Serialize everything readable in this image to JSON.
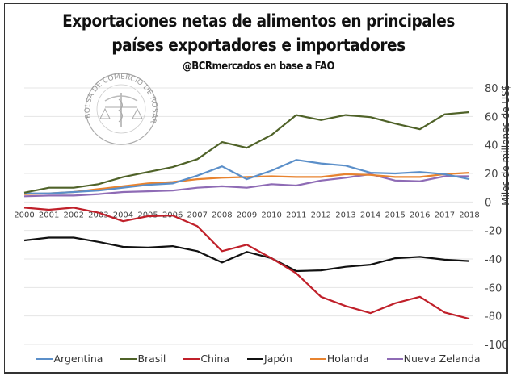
{
  "chart_data": {
    "type": "line",
    "title": "Exportaciones netas de alimentos en principales",
    "title_line2": "países exportadores e importadores",
    "subtitle": "@BCRmercados en base a FAO",
    "xlabel": "",
    "ylabel": "Miles de millones de US$",
    "ylim": [
      -100,
      80
    ],
    "yticks": [
      80,
      60,
      40,
      20,
      0,
      -20,
      -40,
      -60,
      -80,
      -100
    ],
    "grid": true,
    "legend_position": "bottom",
    "watermark": "BOLSA DE COMERCIO DE ROSARIO",
    "x": [
      "2000",
      "2001",
      "2002",
      "2003",
      "2004",
      "2005",
      "2006",
      "2007",
      "2008",
      "2009",
      "2010",
      "2011",
      "2012",
      "2013",
      "2014",
      "2015",
      "2016",
      "2017",
      "2018"
    ],
    "series": [
      {
        "name": "Argentina",
        "color": "#5b8fc9",
        "values": [
          6,
          6,
          7,
          8,
          10,
          12,
          13,
          18.5,
          25,
          16,
          22,
          29.5,
          27,
          25.5,
          20.5,
          20,
          21,
          19.5,
          16
        ]
      },
      {
        "name": "Brasil",
        "color": "#4f6228",
        "values": [
          6.5,
          10,
          10,
          12.5,
          17.5,
          21,
          24.5,
          30,
          42,
          38,
          47,
          61,
          57.5,
          61,
          59.5,
          55,
          51,
          61.5,
          63
        ]
      },
      {
        "name": "China",
        "color": "#c0202a",
        "values": [
          -4,
          -5.5,
          -4,
          -7.5,
          -13.5,
          -10,
          -9.5,
          -17,
          -34.5,
          -30,
          -39.5,
          -50,
          -66.5,
          -73,
          -78,
          -71,
          -66.5,
          -77.5,
          -82
        ]
      },
      {
        "name": "Japón",
        "color": "#111111",
        "values": [
          -27,
          -25,
          -25,
          -28,
          -31.5,
          -32,
          -31,
          -34.5,
          -42.5,
          -35,
          -39.5,
          -48.5,
          -48,
          -45.5,
          -44,
          -39.5,
          -38.5,
          -40.5,
          -41.5
        ]
      },
      {
        "name": "Holanda",
        "color": "#e8832f",
        "values": [
          5.5,
          6,
          7,
          9,
          11,
          13,
          14,
          16,
          17,
          17.5,
          18,
          17.5,
          17.5,
          19.5,
          19,
          17.5,
          17.5,
          19.5,
          20.5
        ]
      },
      {
        "name": "Nueva Zelanda",
        "color": "#8e6bb5",
        "values": [
          4,
          4.5,
          4.5,
          5.5,
          7,
          7.5,
          8,
          10,
          11,
          10,
          12.5,
          11.5,
          15,
          17,
          19.5,
          15,
          14.5,
          18,
          18
        ]
      }
    ]
  }
}
